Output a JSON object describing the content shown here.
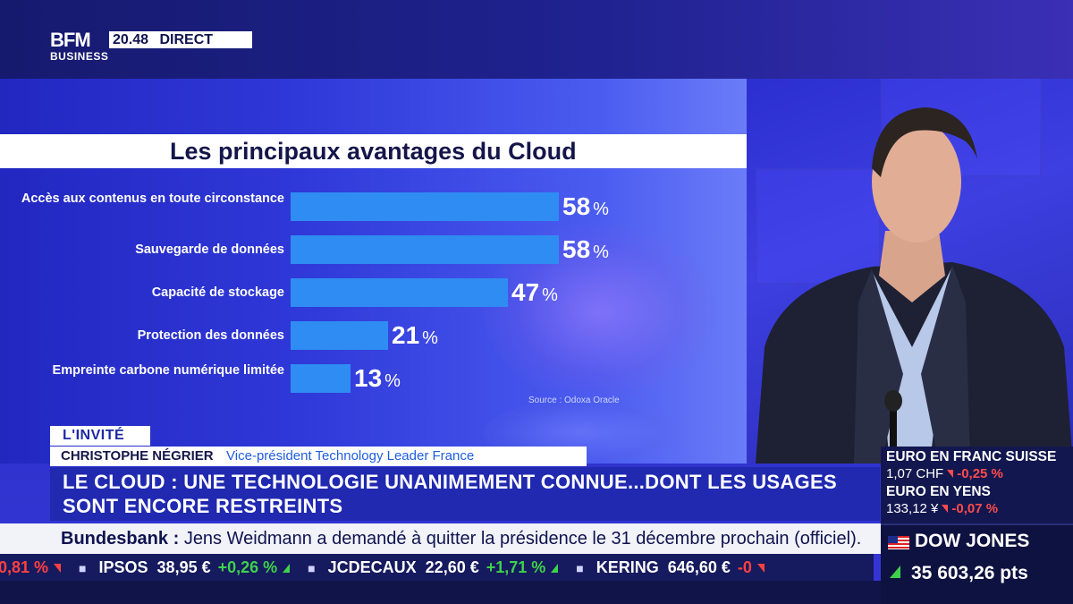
{
  "broadcast": {
    "logo_top": "BFM",
    "logo_bottom": "BUSINESS",
    "time": "20.48",
    "live": "DIRECT"
  },
  "chart_data": {
    "type": "bar",
    "title": "Les principaux avantages du Cloud",
    "categories": [
      "Accès aux contenus en toute circonstance",
      "Sauvegarde de données",
      "Capacité de stockage",
      "Protection des données",
      "Empreinte carbone numérique limitée"
    ],
    "values": [
      58,
      58,
      47,
      21,
      13
    ],
    "value_labels": [
      "58",
      "58",
      "47",
      "21",
      "13"
    ],
    "unit": "%",
    "source": "Source : Odoxa Oracle",
    "bar_color": "#2f8cf2"
  },
  "lower_third": {
    "tag": "L'INVITÉ",
    "guest_name": "CHRISTOPHE NÉGRIER",
    "guest_role": "Vice-président Technology Leader France",
    "headline_line1": "LE CLOUD : UNE TECHNOLOGIE UNANIMEMENT CONNUE...DONT LES USAGES",
    "headline_line2": "SONT ENCORE RESTREINTS"
  },
  "news_ticker": {
    "source": "Bundesbank :",
    "text": "Jens Weidmann a demandé à quitter la présidence le 31 décembre prochain (officiel)."
  },
  "stock_ticker": [
    {
      "name": "",
      "price": "",
      "change": "-0,81 %",
      "direction": "down"
    },
    {
      "name": "IPSOS",
      "price": "38,95 €",
      "change": "+0,26 %",
      "direction": "up"
    },
    {
      "name": "JCDECAUX",
      "price": "22,60 €",
      "change": "+1,71 %",
      "direction": "up"
    },
    {
      "name": "KERING",
      "price": "646,60 €",
      "change": "-0",
      "direction": "down"
    }
  ],
  "markets": {
    "eur_chf_title": "EURO EN FRANC SUISSE",
    "eur_chf_value": "1,07 CHF",
    "eur_chf_change": "-0,25 %",
    "eur_jpy_title": "EURO EN YENS",
    "eur_jpy_value": "133,12 ¥",
    "eur_jpy_change": "-0,07 %",
    "index_title": "DOW JONES",
    "index_value": "35 603,26 pts"
  },
  "colors": {
    "accent_blue": "#2029b0",
    "up": "#3ed14b",
    "down": "#ff4040"
  }
}
